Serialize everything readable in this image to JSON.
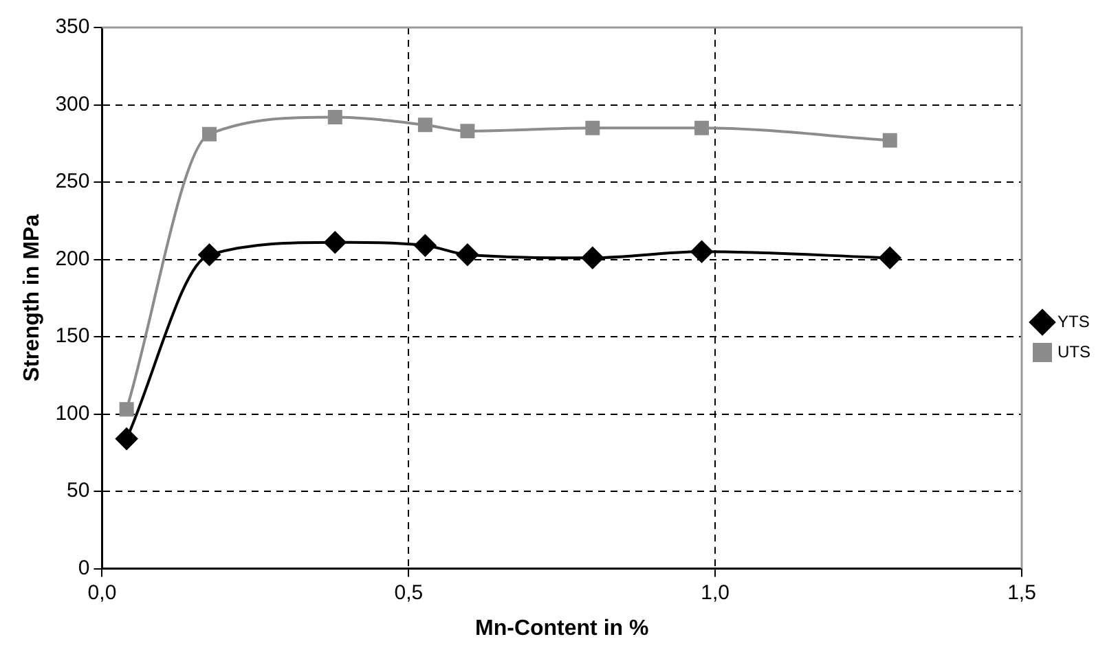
{
  "chart_data": {
    "type": "line",
    "xlabel": "Mn-Content in %",
    "ylabel": "Strength in MPa",
    "series": [
      {
        "name": "YTS",
        "color": "#000000",
        "marker": "diamond",
        "x": [
          0.04,
          0.175,
          0.38,
          0.527,
          0.596,
          0.8,
          0.978,
          1.285
        ],
        "values": [
          84,
          203,
          211,
          209,
          203,
          201,
          205,
          201
        ]
      },
      {
        "name": "UTS",
        "color": "#8c8c8c",
        "marker": "square",
        "x": [
          0.04,
          0.175,
          0.38,
          0.527,
          0.596,
          0.8,
          0.978,
          1.285
        ],
        "values": [
          103,
          281,
          292,
          287,
          283,
          285,
          285,
          277
        ]
      }
    ],
    "xlim": [
      0,
      1.5
    ],
    "xticks": [
      {
        "value": 0,
        "label": "0,0"
      },
      {
        "value": 0.5,
        "label": "0,5"
      },
      {
        "value": 1,
        "label": "1,0"
      },
      {
        "value": 1.5,
        "label": "1,5"
      }
    ],
    "ylim": [
      0,
      350
    ],
    "yticks": [
      0,
      50,
      100,
      150,
      200,
      250,
      300,
      350
    ],
    "grid": true,
    "legend": "right",
    "line_style": "solid"
  }
}
